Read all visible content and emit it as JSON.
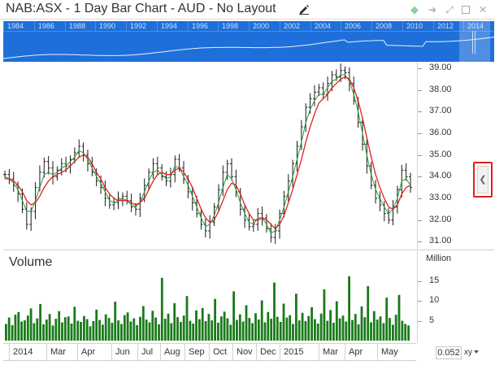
{
  "window": {
    "title": "NAB:ASX - 1 Day Bar Chart - AUD - No Layout",
    "icons": [
      "edit-icon",
      "diamond-icon",
      "pin-icon",
      "expand-icon",
      "maximize-icon",
      "close-icon"
    ]
  },
  "navigator": {
    "years": [
      "1984",
      "1986",
      "1988",
      "1990",
      "1992",
      "1994",
      "1996",
      "1998",
      "2000",
      "2002",
      "2004",
      "2006",
      "2008",
      "2010",
      "2012",
      "2014"
    ],
    "color": "#1e6fd9"
  },
  "price_axis": {
    "ticks": [
      "39.00",
      "38.00",
      "37.00",
      "36.00",
      "35.00",
      "34.00",
      "33.00",
      "32.00",
      "31.00"
    ]
  },
  "volume_panel": {
    "title": "Volume",
    "unit": "Million",
    "ticks": [
      "15",
      "10",
      "5"
    ]
  },
  "time_axis": {
    "labels": [
      "2014",
      "Mar",
      "Apr",
      "Jun",
      "Jul",
      "Aug",
      "Sep",
      "Oct",
      "Nov",
      "Dec",
      "2015",
      "Mar",
      "Apr",
      "May"
    ]
  },
  "readout": {
    "value": "0.052",
    "xy_label": "xy"
  },
  "chart_data": {
    "type": "line",
    "title": "NAB:ASX - 1 Day Bar Chart - AUD - No Layout",
    "ylim": [
      30.6,
      39.3
    ],
    "grid": false,
    "series": [
      {
        "values": [
          34.1,
          33.9,
          33.6,
          33.2,
          32.5,
          31.8,
          32.4,
          33.5,
          34.2,
          34.7,
          34.4,
          34.0,
          34.3,
          34.6,
          34.5,
          34.8,
          35.1,
          35.4,
          35.0,
          34.6,
          34.2,
          33.8,
          33.5,
          33.0,
          32.7,
          32.8,
          33.0,
          33.1,
          32.9,
          32.6,
          32.5,
          33.0,
          33.6,
          34.2,
          34.6,
          34.4,
          34.0,
          33.8,
          34.1,
          34.8,
          34.4,
          33.9,
          33.3,
          32.8,
          32.3,
          31.8,
          31.5,
          31.9,
          32.6,
          33.4,
          34.2,
          34.6,
          34.0,
          33.3,
          32.5,
          32.0,
          31.7,
          31.8,
          32.3,
          32.1,
          31.6,
          31.2,
          31.5,
          32.3,
          33.1,
          33.8,
          34.6,
          35.4,
          36.3,
          37.2,
          37.6,
          37.9,
          38.1,
          37.8,
          38.3,
          38.7,
          38.6,
          38.9,
          38.8,
          38.3,
          37.5,
          36.5,
          35.5,
          34.5,
          33.6,
          33.0,
          32.7,
          32.3,
          32.0,
          32.6,
          33.4,
          34.3,
          34.0,
          33.5
        ],
        "color": "#1a1a1a"
      },
      {
        "values": [
          33.9,
          33.9,
          33.8,
          33.6,
          33.3,
          32.9,
          32.7,
          32.8,
          33.1,
          33.5,
          33.8,
          34.0,
          34.1,
          34.2,
          34.3,
          34.5,
          34.7,
          34.9,
          35.0,
          34.9,
          34.6,
          34.2,
          33.9,
          33.5,
          33.2,
          33.0,
          32.9,
          32.9,
          32.9,
          32.8,
          32.7,
          32.8,
          33.0,
          33.4,
          33.8,
          34.1,
          34.2,
          34.1,
          34.1,
          34.3,
          34.4,
          34.2,
          33.9,
          33.5,
          33.0,
          32.5,
          32.1,
          31.9,
          32.0,
          32.4,
          32.9,
          33.4,
          33.7,
          33.6,
          33.2,
          32.7,
          32.3,
          32.0,
          32.0,
          32.1,
          32.0,
          31.8,
          31.6,
          31.8,
          32.2,
          32.8,
          33.4,
          34.1,
          34.8,
          35.6,
          36.3,
          36.9,
          37.4,
          37.6,
          37.8,
          38.1,
          38.3,
          38.5,
          38.6,
          38.5,
          38.1,
          37.5,
          36.7,
          35.8,
          34.9,
          34.1,
          33.5,
          33.0,
          32.6,
          32.5,
          32.7,
          33.2,
          33.5,
          33.6
        ],
        "color": "#e02020"
      },
      {
        "values": [
          34.0,
          33.9,
          33.7,
          33.4,
          32.9,
          32.4,
          32.4,
          32.9,
          33.5,
          34.1,
          34.2,
          34.1,
          34.2,
          34.4,
          34.5,
          34.7,
          34.9,
          35.2,
          35.1,
          34.8,
          34.4,
          34.0,
          33.7,
          33.3,
          32.9,
          32.8,
          32.9,
          33.0,
          32.9,
          32.7,
          32.6,
          32.8,
          33.3,
          33.8,
          34.2,
          34.3,
          34.1,
          33.9,
          34.0,
          34.5,
          34.4,
          34.0,
          33.6,
          33.1,
          32.6,
          32.1,
          31.7,
          31.8,
          32.2,
          32.8,
          33.5,
          34.1,
          33.9,
          33.4,
          32.8,
          32.3,
          31.9,
          31.8,
          32.1,
          32.1,
          31.8,
          31.4,
          31.5,
          32.0,
          32.6,
          33.3,
          34.0,
          34.8,
          35.6,
          36.5,
          37.1,
          37.5,
          37.8,
          37.8,
          38.1,
          38.4,
          38.5,
          38.7,
          38.7,
          38.4,
          37.8,
          37.0,
          36.0,
          35.0,
          34.1,
          33.4,
          33.0,
          32.6,
          32.3,
          32.5,
          33.0,
          33.8,
          33.9,
          33.6
        ],
        "color": "#1f9e3a"
      }
    ],
    "volume": {
      "unit": "Million",
      "ylim": [
        0,
        18
      ],
      "values": [
        4.2,
        5.8,
        3.9,
        6.5,
        7.2,
        4.8,
        5.1,
        6.3,
        8.1,
        4.4,
        5.6,
        9.2,
        4.1,
        5.3,
        6.7,
        3.8,
        5.5,
        7.4,
        4.6,
        5.9,
        6.1,
        4.3,
        8.5,
        5.0,
        4.7,
        6.2,
        5.4,
        3.6,
        4.9,
        7.8,
        5.2,
        4.0,
        6.6,
        5.7,
        4.5,
        9.8,
        5.1,
        4.2,
        6.4,
        7.1,
        4.8,
        5.6,
        3.9,
        6.0,
        8.7,
        5.3,
        4.6,
        7.5,
        5.8,
        4.1,
        15.8,
        5.5,
        6.8,
        4.4,
        9.4,
        5.9,
        4.7,
        6.3,
        11.2,
        5.0,
        4.3,
        7.6,
        5.4,
        8.2,
        4.9,
        6.7,
        5.1,
        10.5,
        4.5,
        6.1,
        7.3,
        5.6,
        4.0,
        12.4,
        5.2,
        6.6,
        4.8,
        8.9,
        5.7,
        4.4,
        6.9,
        5.3,
        10.1,
        4.6,
        7.2,
        5.5,
        14.6,
        6.0,
        4.7,
        9.3,
        5.8,
        6.4,
        4.2,
        11.8,
        5.1,
        7.0,
        4.9,
        6.2,
        8.4,
        5.4,
        4.3,
        6.8,
        12.9,
        5.0,
        7.7,
        4.5,
        9.9,
        5.6,
        6.3,
        4.8,
        16.2,
        5.2,
        6.7,
        4.1,
        8.6,
        5.9,
        13.7,
        4.6,
        7.4,
        5.3,
        6.1,
        4.4,
        10.8,
        5.7,
        4.0,
        6.5,
        11.5,
        5.0,
        4.2,
        3.8
      ]
    }
  }
}
